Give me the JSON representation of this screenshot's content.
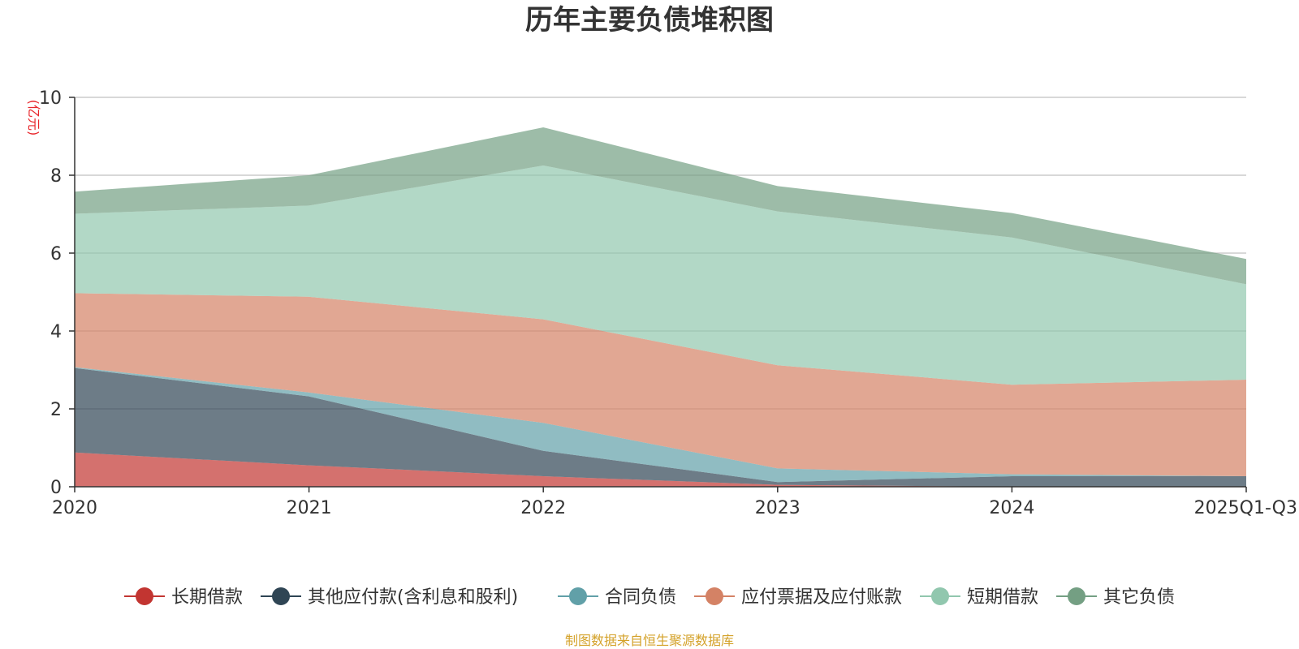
{
  "chart_data": {
    "type": "area",
    "stacked": true,
    "title": "历年主要负债堆积图",
    "ylabel": "(亿元)",
    "xlabel": "",
    "ylim": [
      0,
      10
    ],
    "yticks": [
      "0",
      "2",
      "4",
      "6",
      "8",
      "10"
    ],
    "categories": [
      "2020",
      "2021",
      "2022",
      "2023",
      "2024",
      "2025Q1-Q3"
    ],
    "series": [
      {
        "name": "长期借款",
        "color": "#c23531",
        "values": [
          0.88,
          0.55,
          0.27,
          0.05,
          0.0,
          0.0
        ]
      },
      {
        "name": "其他应付款(含利息和股利)",
        "color": "#2f4554",
        "values": [
          2.17,
          1.77,
          0.65,
          0.07,
          0.27,
          0.27
        ]
      },
      {
        "name": "合同负债",
        "color": "#61a0a8",
        "values": [
          0.02,
          0.1,
          0.72,
          0.35,
          0.05,
          0.0
        ]
      },
      {
        "name": "应付票据及应付账款",
        "color": "#d48265",
        "values": [
          1.9,
          2.46,
          2.66,
          2.65,
          2.3,
          2.48
        ]
      },
      {
        "name": "短期借款",
        "color": "#91c7ae",
        "values": [
          2.04,
          2.34,
          3.95,
          3.95,
          3.78,
          2.45
        ]
      },
      {
        "name": "其它负债",
        "color": "#749f83",
        "values": [
          0.57,
          0.78,
          0.98,
          0.65,
          0.63,
          0.65
        ]
      }
    ],
    "legend_position": "bottom",
    "grid": true
  },
  "source_note": "制图数据来自恒生聚源数据库"
}
